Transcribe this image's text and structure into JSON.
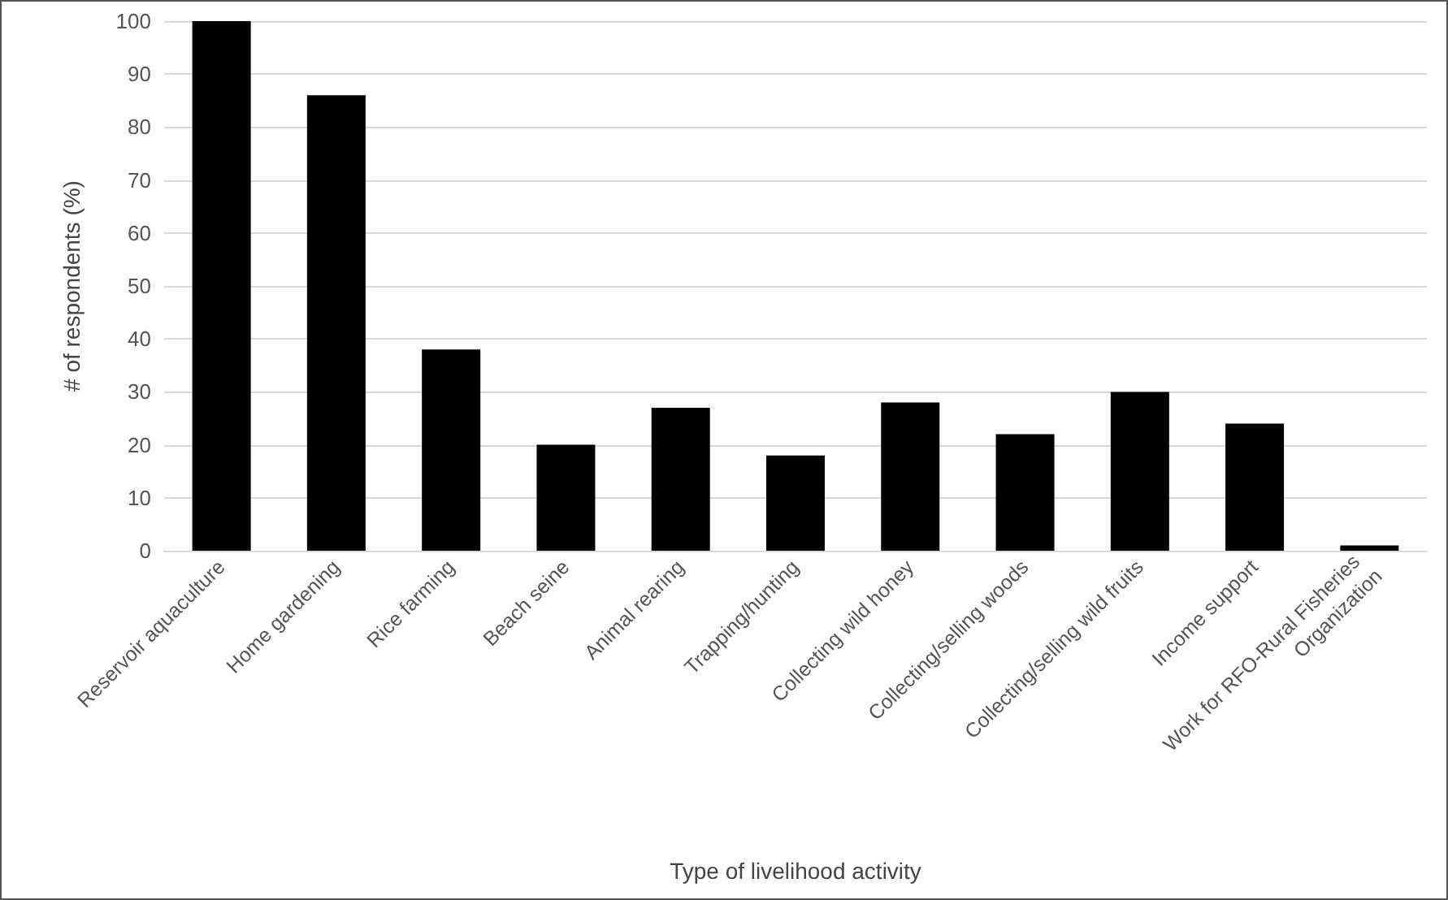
{
  "chart_data": {
    "type": "bar",
    "xlabel": "Type of livelihood activity",
    "ylabel": "# of respondents (%)",
    "categories": [
      "Reservoir aquaculture",
      "Home gardening",
      "Rice farming",
      "Beach seine",
      "Animal rearing",
      "Trapping/hunting",
      "Collecting wild honey",
      "Collecting/selling woods",
      "Collecting/selling wild fruits",
      "Income support",
      "Work for RFO-Rural Fisheries Organization"
    ],
    "values": [
      100,
      86,
      38,
      20,
      27,
      18,
      28,
      22,
      30,
      24,
      1
    ],
    "color": "#000000",
    "ylim": [
      0,
      100
    ],
    "yticks": [
      0,
      10,
      20,
      30,
      40,
      50,
      60,
      70,
      80,
      90,
      100
    ],
    "grid": "y"
  }
}
